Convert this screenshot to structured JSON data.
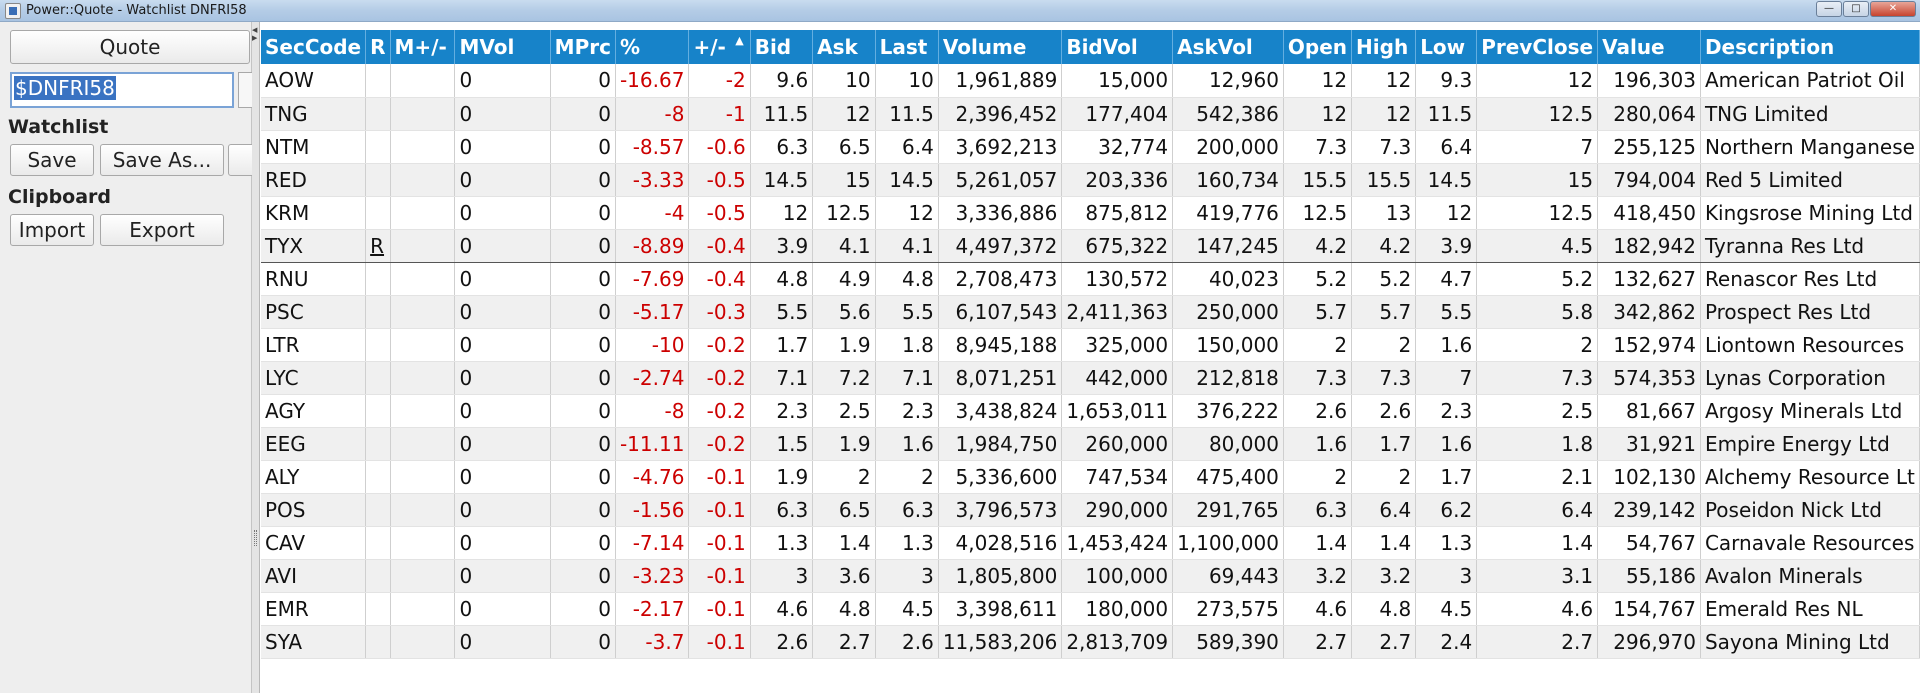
{
  "window": {
    "title": "Power::Quote - Watchlist DNFRI58"
  },
  "left_panel": {
    "quote_label": "Quote",
    "watchlist_input_value": "$DNFRI58",
    "watchlist_label": "Watchlist",
    "save_label": "Save",
    "save_as_label": "Save As...",
    "clipboard_label": "Clipboard",
    "import_label": "Import",
    "export_label": "Export"
  },
  "table": {
    "sorted_column": "+/-",
    "columns": [
      "SecCode",
      "R",
      "M+/-",
      "MVol",
      "MPrc",
      "%",
      "+/-",
      "Bid",
      "Ask",
      "Last",
      "Volume",
      "BidVol",
      "AskVol",
      "Open",
      "High",
      "Low",
      "PrevClose",
      "Value",
      "Description"
    ],
    "rows": [
      {
        "SecCode": "AOW",
        "R": "",
        "M+/-": "",
        "MVol": "0",
        "MPrc": "0",
        "%": "-16.67",
        "+/-": "-2",
        "Bid": "9.6",
        "Ask": "10",
        "Last": "10",
        "Volume": "1,961,889",
        "BidVol": "15,000",
        "AskVol": "12,960",
        "Open": "12",
        "High": "12",
        "Low": "9.3",
        "PrevClose": "12",
        "Value": "196,303",
        "Description": "American Patriot Oil"
      },
      {
        "SecCode": "TNG",
        "R": "",
        "M+/-": "",
        "MVol": "0",
        "MPrc": "0",
        "%": "-8",
        "+/-": "-1",
        "Bid": "11.5",
        "Ask": "12",
        "Last": "11.5",
        "Volume": "2,396,452",
        "BidVol": "177,404",
        "AskVol": "542,386",
        "Open": "12",
        "High": "12",
        "Low": "11.5",
        "PrevClose": "12.5",
        "Value": "280,064",
        "Description": "TNG Limited"
      },
      {
        "SecCode": "NTM",
        "R": "",
        "M+/-": "",
        "MVol": "0",
        "MPrc": "0",
        "%": "-8.57",
        "+/-": "-0.6",
        "Bid": "6.3",
        "Ask": "6.5",
        "Last": "6.4",
        "Volume": "3,692,213",
        "BidVol": "32,774",
        "AskVol": "200,000",
        "Open": "7.3",
        "High": "7.3",
        "Low": "6.4",
        "PrevClose": "7",
        "Value": "255,125",
        "Description": "Northern Manganese"
      },
      {
        "SecCode": "RED",
        "R": "",
        "M+/-": "",
        "MVol": "0",
        "MPrc": "0",
        "%": "-3.33",
        "+/-": "-0.5",
        "Bid": "14.5",
        "Ask": "15",
        "Last": "14.5",
        "Volume": "5,261,057",
        "BidVol": "203,336",
        "AskVol": "160,734",
        "Open": "15.5",
        "High": "15.5",
        "Low": "14.5",
        "PrevClose": "15",
        "Value": "794,004",
        "Description": "Red 5 Limited"
      },
      {
        "SecCode": "KRM",
        "R": "",
        "M+/-": "",
        "MVol": "0",
        "MPrc": "0",
        "%": "-4",
        "+/-": "-0.5",
        "Bid": "12",
        "Ask": "12.5",
        "Last": "12",
        "Volume": "3,336,886",
        "BidVol": "875,812",
        "AskVol": "419,776",
        "Open": "12.5",
        "High": "13",
        "Low": "12",
        "PrevClose": "12.5",
        "Value": "418,450",
        "Description": "Kingsrose Mining Ltd"
      },
      {
        "SecCode": "TYX",
        "R": "R",
        "M+/-": "",
        "MVol": "0",
        "MPrc": "0",
        "%": "-8.89",
        "+/-": "-0.4",
        "Bid": "3.9",
        "Ask": "4.1",
        "Last": "4.1",
        "Volume": "4,497,372",
        "BidVol": "675,322",
        "AskVol": "147,245",
        "Open": "4.2",
        "High": "4.2",
        "Low": "3.9",
        "PrevClose": "4.5",
        "Value": "182,942",
        "Description": "Tyranna Res Ltd"
      },
      {
        "SecCode": "RNU",
        "R": "",
        "M+/-": "",
        "MVol": "0",
        "MPrc": "0",
        "%": "-7.69",
        "+/-": "-0.4",
        "Bid": "4.8",
        "Ask": "4.9",
        "Last": "4.8",
        "Volume": "2,708,473",
        "BidVol": "130,572",
        "AskVol": "40,023",
        "Open": "5.2",
        "High": "5.2",
        "Low": "4.7",
        "PrevClose": "5.2",
        "Value": "132,627",
        "Description": "Renascor Res Ltd"
      },
      {
        "SecCode": "PSC",
        "R": "",
        "M+/-": "",
        "MVol": "0",
        "MPrc": "0",
        "%": "-5.17",
        "+/-": "-0.3",
        "Bid": "5.5",
        "Ask": "5.6",
        "Last": "5.5",
        "Volume": "6,107,543",
        "BidVol": "2,411,363",
        "AskVol": "250,000",
        "Open": "5.7",
        "High": "5.7",
        "Low": "5.5",
        "PrevClose": "5.8",
        "Value": "342,862",
        "Description": "Prospect Res Ltd"
      },
      {
        "SecCode": "LTR",
        "R": "",
        "M+/-": "",
        "MVol": "0",
        "MPrc": "0",
        "%": "-10",
        "+/-": "-0.2",
        "Bid": "1.7",
        "Ask": "1.9",
        "Last": "1.8",
        "Volume": "8,945,188",
        "BidVol": "325,000",
        "AskVol": "150,000",
        "Open": "2",
        "High": "2",
        "Low": "1.6",
        "PrevClose": "2",
        "Value": "152,974",
        "Description": "Liontown Resources"
      },
      {
        "SecCode": "LYC",
        "R": "",
        "M+/-": "",
        "MVol": "0",
        "MPrc": "0",
        "%": "-2.74",
        "+/-": "-0.2",
        "Bid": "7.1",
        "Ask": "7.2",
        "Last": "7.1",
        "Volume": "8,071,251",
        "BidVol": "442,000",
        "AskVol": "212,818",
        "Open": "7.3",
        "High": "7.3",
        "Low": "7",
        "PrevClose": "7.3",
        "Value": "574,353",
        "Description": "Lynas Corporation"
      },
      {
        "SecCode": "AGY",
        "R": "",
        "M+/-": "",
        "MVol": "0",
        "MPrc": "0",
        "%": "-8",
        "+/-": "-0.2",
        "Bid": "2.3",
        "Ask": "2.5",
        "Last": "2.3",
        "Volume": "3,438,824",
        "BidVol": "1,653,011",
        "AskVol": "376,222",
        "Open": "2.6",
        "High": "2.6",
        "Low": "2.3",
        "PrevClose": "2.5",
        "Value": "81,667",
        "Description": "Argosy Minerals Ltd"
      },
      {
        "SecCode": "EEG",
        "R": "",
        "M+/-": "",
        "MVol": "0",
        "MPrc": "0",
        "%": "-11.11",
        "+/-": "-0.2",
        "Bid": "1.5",
        "Ask": "1.9",
        "Last": "1.6",
        "Volume": "1,984,750",
        "BidVol": "260,000",
        "AskVol": "80,000",
        "Open": "1.6",
        "High": "1.7",
        "Low": "1.6",
        "PrevClose": "1.8",
        "Value": "31,921",
        "Description": "Empire Energy Ltd"
      },
      {
        "SecCode": "ALY",
        "R": "",
        "M+/-": "",
        "MVol": "0",
        "MPrc": "0",
        "%": "-4.76",
        "+/-": "-0.1",
        "Bid": "1.9",
        "Ask": "2",
        "Last": "2",
        "Volume": "5,336,600",
        "BidVol": "747,534",
        "AskVol": "475,400",
        "Open": "2",
        "High": "2",
        "Low": "1.7",
        "PrevClose": "2.1",
        "Value": "102,130",
        "Description": "Alchemy Resource Lt"
      },
      {
        "SecCode": "POS",
        "R": "",
        "M+/-": "",
        "MVol": "0",
        "MPrc": "0",
        "%": "-1.56",
        "+/-": "-0.1",
        "Bid": "6.3",
        "Ask": "6.5",
        "Last": "6.3",
        "Volume": "3,796,573",
        "BidVol": "290,000",
        "AskVol": "291,765",
        "Open": "6.3",
        "High": "6.4",
        "Low": "6.2",
        "PrevClose": "6.4",
        "Value": "239,142",
        "Description": "Poseidon Nick Ltd"
      },
      {
        "SecCode": "CAV",
        "R": "",
        "M+/-": "",
        "MVol": "0",
        "MPrc": "0",
        "%": "-7.14",
        "+/-": "-0.1",
        "Bid": "1.3",
        "Ask": "1.4",
        "Last": "1.3",
        "Volume": "4,028,516",
        "BidVol": "1,453,424",
        "AskVol": "1,100,000",
        "Open": "1.4",
        "High": "1.4",
        "Low": "1.3",
        "PrevClose": "1.4",
        "Value": "54,767",
        "Description": "Carnavale Resources"
      },
      {
        "SecCode": "AVI",
        "R": "",
        "M+/-": "",
        "MVol": "0",
        "MPrc": "0",
        "%": "-3.23",
        "+/-": "-0.1",
        "Bid": "3",
        "Ask": "3.6",
        "Last": "3",
        "Volume": "1,805,800",
        "BidVol": "100,000",
        "AskVol": "69,443",
        "Open": "3.2",
        "High": "3.2",
        "Low": "3",
        "PrevClose": "3.1",
        "Value": "55,186",
        "Description": "Avalon Minerals"
      },
      {
        "SecCode": "EMR",
        "R": "",
        "M+/-": "",
        "MVol": "0",
        "MPrc": "0",
        "%": "-2.17",
        "+/-": "-0.1",
        "Bid": "4.6",
        "Ask": "4.8",
        "Last": "4.5",
        "Volume": "3,398,611",
        "BidVol": "180,000",
        "AskVol": "273,575",
        "Open": "4.6",
        "High": "4.8",
        "Low": "4.5",
        "PrevClose": "4.6",
        "Value": "154,767",
        "Description": "Emerald Res NL"
      },
      {
        "SecCode": "SYA",
        "R": "",
        "M+/-": "",
        "MVol": "0",
        "MPrc": "0",
        "%": "-3.7",
        "+/-": "-0.1",
        "Bid": "2.6",
        "Ask": "2.7",
        "Last": "2.6",
        "Volume": "11,583,206",
        "BidVol": "2,813,709",
        "AskVol": "589,390",
        "Open": "2.7",
        "High": "2.7",
        "Low": "2.4",
        "PrevClose": "2.7",
        "Value": "296,970",
        "Description": "Sayona Mining Ltd"
      }
    ]
  },
  "colors": {
    "header_bg": "#1783c9",
    "negative": "#cc0000",
    "alt_row": "#f0f0f0"
  },
  "icons": {
    "sort": "sort-ascending-icon"
  }
}
